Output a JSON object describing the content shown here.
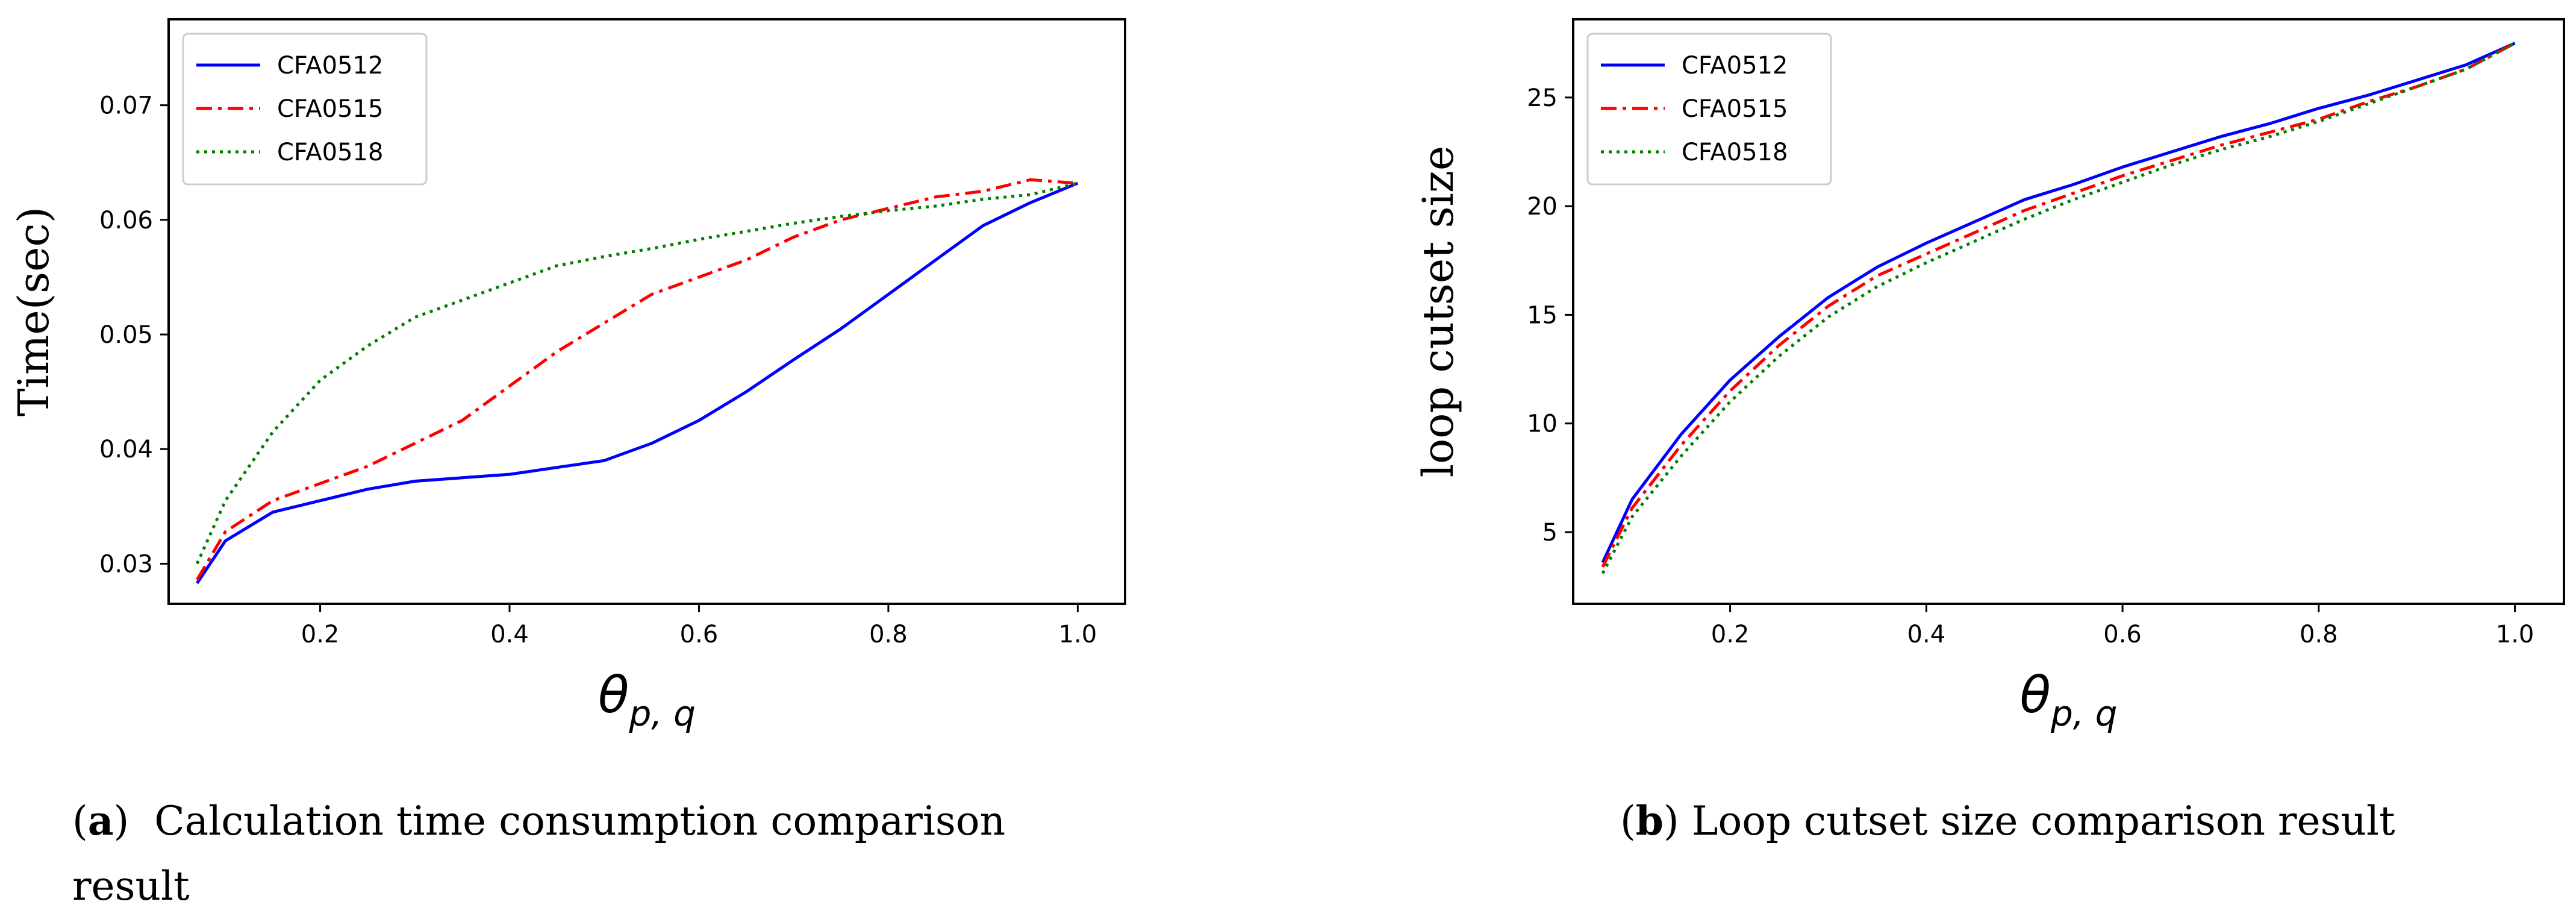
{
  "captions": {
    "a_letter": "a",
    "a_text": "Calculation time consumption comparison result",
    "b_letter": "b",
    "b_text": "Loop cutset size comparison result"
  },
  "colors": {
    "CFA0512": "#0000ff",
    "CFA0515": "#ff0000",
    "CFA0518": "#008000"
  },
  "chart_data": [
    {
      "type": "line",
      "title": "",
      "xlabel": "θp, q",
      "ylabel": "Time(sec)",
      "xlim": [
        0.04,
        1.05
      ],
      "ylim": [
        0.0265,
        0.0775
      ],
      "xticks": [
        0.2,
        0.4,
        0.6,
        0.8,
        1.0
      ],
      "xtick_labels": [
        "0.2",
        "0.4",
        "0.6",
        "0.8",
        "1.0"
      ],
      "yticks": [
        0.03,
        0.04,
        0.05,
        0.06,
        0.07
      ],
      "ytick_labels": [
        "0.03",
        "0.04",
        "0.05",
        "0.06",
        "0.07"
      ],
      "legend_position": "top-left",
      "x": [
        0.07,
        0.1,
        0.15,
        0.2,
        0.25,
        0.3,
        0.35,
        0.4,
        0.45,
        0.5,
        0.55,
        0.6,
        0.65,
        0.7,
        0.75,
        0.8,
        0.85,
        0.9,
        0.95,
        1.0
      ],
      "series": [
        {
          "name": "CFA0512",
          "style": "solid",
          "values": [
            0.0283,
            0.032,
            0.0345,
            0.0355,
            0.0365,
            0.0372,
            0.0375,
            0.0378,
            0.0384,
            0.039,
            0.0405,
            0.0425,
            0.045,
            0.0478,
            0.0505,
            0.0535,
            0.0565,
            0.0595,
            0.0615,
            0.0632
          ]
        },
        {
          "name": "CFA0515",
          "style": "dashdot",
          "values": [
            0.0286,
            0.0328,
            0.0355,
            0.037,
            0.0385,
            0.0405,
            0.0425,
            0.0455,
            0.0485,
            0.051,
            0.0535,
            0.055,
            0.0565,
            0.0585,
            0.06,
            0.061,
            0.062,
            0.0625,
            0.0635,
            0.0632
          ]
        },
        {
          "name": "CFA0518",
          "style": "dotted",
          "values": [
            0.03,
            0.0355,
            0.0415,
            0.046,
            0.049,
            0.0515,
            0.053,
            0.0545,
            0.056,
            0.0568,
            0.0575,
            0.0583,
            0.059,
            0.0597,
            0.0603,
            0.0608,
            0.0612,
            0.0618,
            0.0622,
            0.0632
          ]
        }
      ]
    },
    {
      "type": "line",
      "title": "",
      "xlabel": "θp, q",
      "ylabel": "loop cutset size",
      "xlim": [
        0.04,
        1.05
      ],
      "ylim": [
        1.7,
        28.6
      ],
      "xticks": [
        0.2,
        0.4,
        0.6,
        0.8,
        1.0
      ],
      "xtick_labels": [
        "0.2",
        "0.4",
        "0.6",
        "0.8",
        "1.0"
      ],
      "yticks": [
        5,
        10,
        15,
        20,
        25
      ],
      "ytick_labels": [
        "5",
        "10",
        "15",
        "20",
        "25"
      ],
      "legend_position": "top-left",
      "x": [
        0.07,
        0.1,
        0.15,
        0.2,
        0.25,
        0.3,
        0.35,
        0.4,
        0.45,
        0.5,
        0.55,
        0.6,
        0.65,
        0.7,
        0.75,
        0.8,
        0.85,
        0.9,
        0.95,
        1.0
      ],
      "series": [
        {
          "name": "CFA0512",
          "style": "solid",
          "values": [
            3.6,
            6.5,
            9.5,
            12.0,
            14.0,
            15.8,
            17.2,
            18.3,
            19.3,
            20.3,
            21.0,
            21.8,
            22.5,
            23.2,
            23.8,
            24.5,
            25.1,
            25.8,
            26.5,
            27.5
          ]
        },
        {
          "name": "CFA0515",
          "style": "dashdot",
          "values": [
            3.4,
            6.1,
            9.0,
            11.5,
            13.6,
            15.4,
            16.8,
            17.8,
            18.8,
            19.8,
            20.6,
            21.4,
            22.1,
            22.8,
            23.4,
            24.0,
            24.8,
            25.5,
            26.3,
            27.5
          ]
        },
        {
          "name": "CFA0518",
          "style": "dotted",
          "values": [
            3.1,
            5.7,
            8.5,
            11.0,
            13.1,
            14.9,
            16.3,
            17.4,
            18.4,
            19.4,
            20.3,
            21.1,
            21.9,
            22.6,
            23.2,
            23.9,
            24.7,
            25.5,
            26.3,
            27.5
          ]
        }
      ]
    }
  ]
}
